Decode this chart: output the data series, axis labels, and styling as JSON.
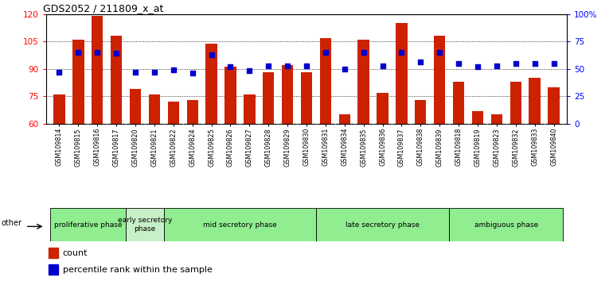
{
  "title": "GDS2052 / 211809_x_at",
  "samples": [
    "GSM109814",
    "GSM109815",
    "GSM109816",
    "GSM109817",
    "GSM109820",
    "GSM109821",
    "GSM109822",
    "GSM109824",
    "GSM109825",
    "GSM109826",
    "GSM109827",
    "GSM109828",
    "GSM109829",
    "GSM109830",
    "GSM109831",
    "GSM109834",
    "GSM109835",
    "GSM109836",
    "GSM109837",
    "GSM109838",
    "GSM109839",
    "GSM109818",
    "GSM109819",
    "GSM109823",
    "GSM109832",
    "GSM109833",
    "GSM109840"
  ],
  "counts": [
    76,
    106,
    119,
    108,
    79,
    76,
    72,
    73,
    104,
    91,
    76,
    88,
    92,
    88,
    107,
    65,
    106,
    77,
    115,
    73,
    108,
    83,
    67,
    65,
    83,
    85,
    80
  ],
  "percentile": [
    47,
    65,
    65,
    64,
    47,
    47,
    49,
    46,
    63,
    52,
    48,
    53,
    53,
    53,
    65,
    50,
    65,
    53,
    65,
    56,
    65,
    55,
    52,
    53,
    55,
    55,
    55
  ],
  "phases": [
    {
      "name": "proliferative phase",
      "start": 0,
      "end": 4,
      "color": "#90EE90"
    },
    {
      "name": "early secretory\nphase",
      "start": 4,
      "end": 6,
      "color": "#c8f0c8"
    },
    {
      "name": "mid secretory phase",
      "start": 6,
      "end": 14,
      "color": "#90EE90"
    },
    {
      "name": "late secretory phase",
      "start": 14,
      "end": 21,
      "color": "#90EE90"
    },
    {
      "name": "ambiguous phase",
      "start": 21,
      "end": 27,
      "color": "#90EE90"
    }
  ],
  "bar_color": "#cc2200",
  "dot_color": "#0000cc",
  "ylim_left": [
    60,
    120
  ],
  "ylim_right": [
    0,
    100
  ],
  "yticks_left": [
    60,
    75,
    90,
    105,
    120
  ],
  "yticks_right": [
    0,
    25,
    50,
    75,
    100
  ],
  "ylabel_right_labels": [
    "0",
    "25",
    "50",
    "75",
    "100%"
  ],
  "tick_bg_color": "#c8c8c8"
}
